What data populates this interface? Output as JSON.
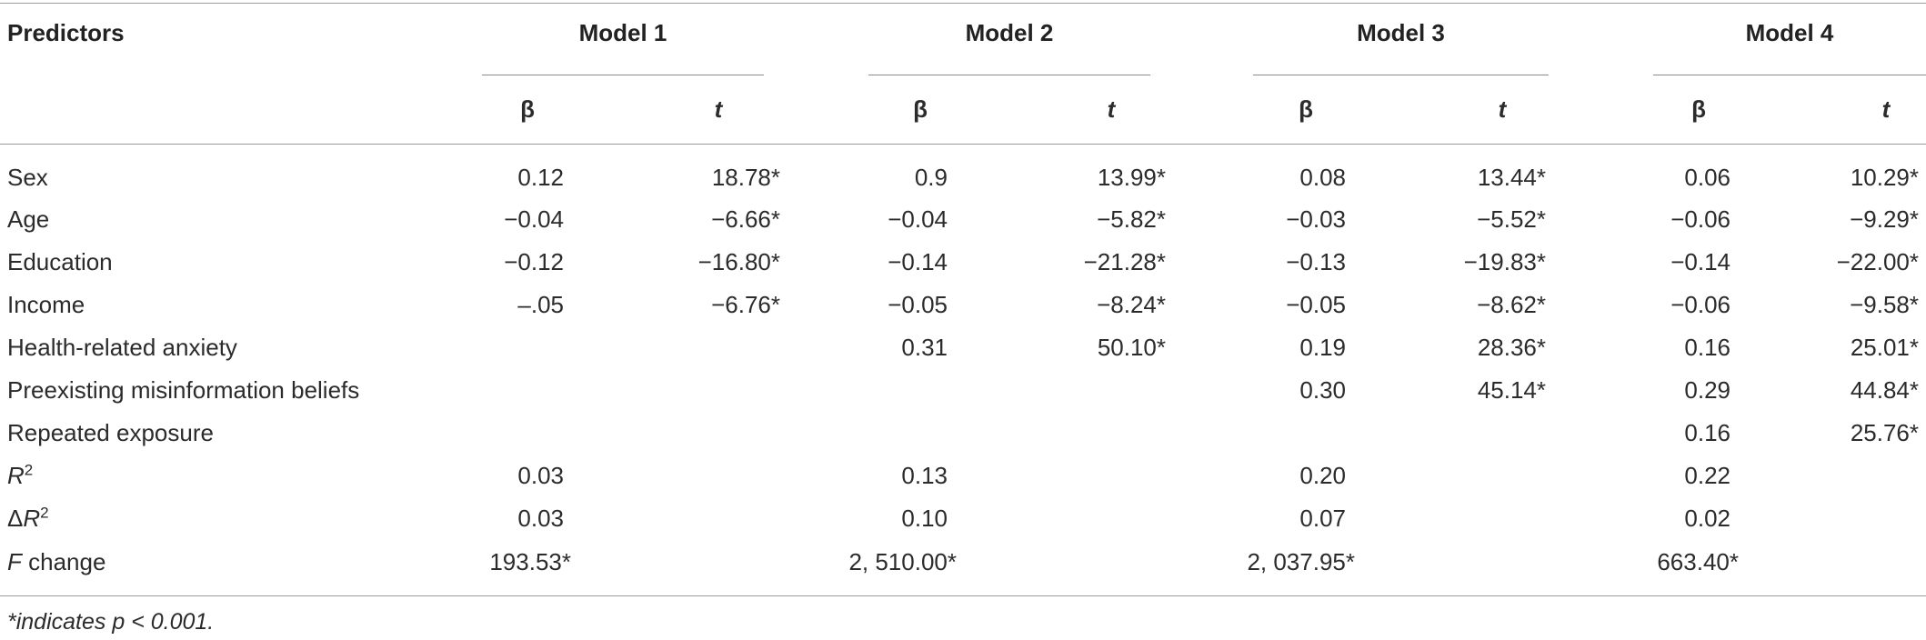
{
  "header": {
    "predictors_label": "Predictors",
    "models": [
      "Model 1",
      "Model 2",
      "Model 3",
      "Model 4"
    ],
    "beta_label": "β",
    "t_label": "t"
  },
  "rows": [
    {
      "label": "Sex",
      "cells": [
        "0.12",
        "18.78*",
        "0.9",
        "13.99*",
        "0.08",
        "13.44*",
        "0.06",
        "10.29*"
      ]
    },
    {
      "label": "Age",
      "cells": [
        "−0.04",
        "−6.66*",
        "−0.04",
        "−5.82*",
        "−0.03",
        "−5.52*",
        "−0.06",
        "−9.29*"
      ]
    },
    {
      "label": "Education",
      "cells": [
        "−0.12",
        "−16.80*",
        "−0.14",
        "−21.28*",
        "−0.13",
        "−19.83*",
        "−0.14",
        "−22.00*"
      ]
    },
    {
      "label": "Income",
      "cells": [
        "–.05",
        "−6.76*",
        "−0.05",
        "−8.24*",
        "−0.05",
        "−8.62*",
        "−0.06",
        "−9.58*"
      ]
    },
    {
      "label": "Health-related anxiety",
      "cells": [
        "",
        "",
        "0.31",
        "50.10*",
        "0.19",
        "28.36*",
        "0.16",
        "25.01*"
      ]
    },
    {
      "label": "Preexisting misinformation beliefs",
      "cells": [
        "",
        "",
        "",
        "",
        "0.30",
        "45.14*",
        "0.29",
        "44.84*"
      ]
    },
    {
      "label": "Repeated exposure",
      "cells": [
        "",
        "",
        "",
        "",
        "",
        "",
        "0.16",
        "25.76*"
      ]
    }
  ],
  "summary": {
    "r2": {
      "label_main": "R",
      "label_sup": "2",
      "values": [
        "0.03",
        "0.13",
        "0.20",
        "0.22"
      ]
    },
    "delta_r2": {
      "label_prefix": "Δ",
      "label_main": "R",
      "label_sup": "2",
      "values": [
        "0.03",
        "0.10",
        "0.07",
        "0.02"
      ]
    },
    "f_change": {
      "label_main": "F",
      "label_rest": " change",
      "values": [
        "193.53*",
        "2, 510.00*",
        "2, 037.95*",
        "663.40*"
      ]
    }
  },
  "note": "*indicates p < 0.001."
}
